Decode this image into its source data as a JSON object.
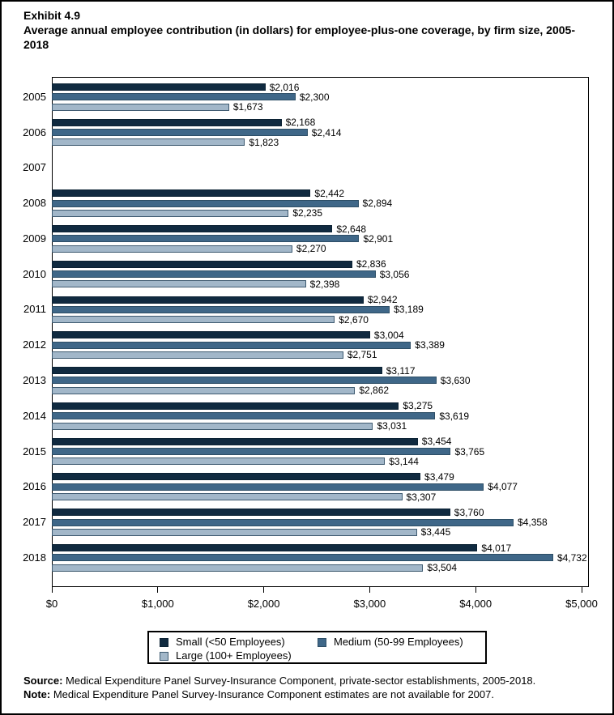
{
  "title": {
    "exhibit": "Exhibit 4.9",
    "text": "Average annual employee contribution (in dollars) for employee-plus-one coverage, by firm size, 2005-2018"
  },
  "chart_data": {
    "type": "bar",
    "orientation": "horizontal",
    "title": "Average annual employee contribution (in dollars) for employee-plus-one coverage, by firm size, 2005-2018",
    "categories": [
      "2005",
      "2006",
      "2007",
      "2008",
      "2009",
      "2010",
      "2011",
      "2012",
      "2013",
      "2014",
      "2015",
      "2016",
      "2017",
      "2018"
    ],
    "series": [
      {
        "name": "Small (<50 Employees)",
        "key": "small",
        "color": "#102a40",
        "border_color": "#0c2234",
        "values": [
          2016,
          2168,
          null,
          2442,
          2648,
          2836,
          2942,
          3004,
          3117,
          3275,
          3454,
          3479,
          3760,
          4017
        ],
        "labels": [
          "$2,016",
          "$2,168",
          null,
          "$2,442",
          "$2,648",
          "$2,836",
          "$2,942",
          "$3,004",
          "$3,117",
          "$3,275",
          "$3,454",
          "$3,479",
          "$3,760",
          "$4,017"
        ]
      },
      {
        "name": "Medium (50-99 Employees)",
        "key": "medium",
        "color": "#3f6788",
        "border_color": "#2d4e66",
        "values": [
          2300,
          2414,
          null,
          2894,
          2901,
          3056,
          3189,
          3389,
          3630,
          3619,
          3765,
          4077,
          4358,
          4732
        ],
        "labels": [
          "$2,300",
          "$2,414",
          null,
          "$2,894",
          "$2,901",
          "$3,056",
          "$3,189",
          "$3,389",
          "$3,630",
          "$3,619",
          "$3,765",
          "$4,077",
          "$4,358",
          "$4,732"
        ]
      },
      {
        "name": "Large (100+ Employees)",
        "key": "large",
        "color": "#a2b7c9",
        "border_color": "#3e5a70",
        "values": [
          1673,
          1823,
          null,
          2235,
          2270,
          2398,
          2670,
          2751,
          2862,
          3031,
          3144,
          3307,
          3445,
          3504
        ],
        "labels": [
          "$1,673",
          "$1,823",
          null,
          "$2,235",
          "$2,270",
          "$2,398",
          "$2,670",
          "$2,751",
          "$2,862",
          "$3,031",
          "$3,144",
          "$3,307",
          "$3,445",
          "$3,504"
        ]
      }
    ],
    "xlim": [
      0,
      5000
    ],
    "x_ticks": [
      {
        "value": 0,
        "label": "$0"
      },
      {
        "value": 1000,
        "label": "$1,000"
      },
      {
        "value": 2000,
        "label": "$2,000"
      },
      {
        "value": 3000,
        "label": "$3,000"
      },
      {
        "value": 4000,
        "label": "$4,000"
      },
      {
        "value": 5000,
        "label": "$5,000"
      }
    ],
    "grid": false,
    "legend_position": "bottom"
  },
  "footer": {
    "source_label": "Source:",
    "source_text": " Medical Expenditure Panel Survey-Insurance Component, private-sector establishments, 2005-2018.",
    "note_label": "Note:",
    "note_text": " Medical Expenditure Panel Survey-Insurance Component estimates are not available for 2007."
  }
}
